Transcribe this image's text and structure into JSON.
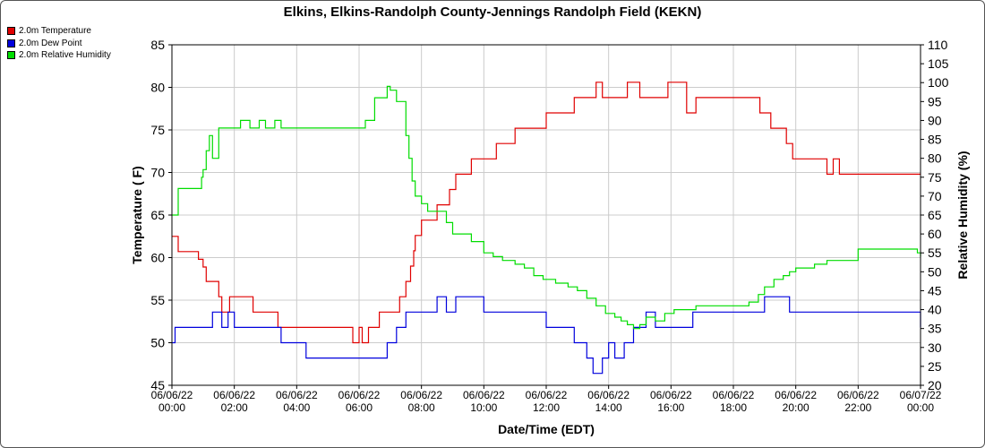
{
  "chart_data": {
    "type": "line",
    "title": "Elkins, Elkins-Randolph County-Jennings Randolph Field (KEKN)",
    "xlabel": "Date/Time (EDT)",
    "ylabel_left": "Temperature ( F)",
    "ylabel_right": "Relative Humidity (%)",
    "ylim_left": [
      45,
      85
    ],
    "ylim_right": [
      20,
      110
    ],
    "yticks_left": [
      "45",
      "50",
      "55",
      "60",
      "65",
      "70",
      "75",
      "80",
      "85"
    ],
    "yticks_right": [
      "20",
      "25",
      "30",
      "35",
      "40",
      "45",
      "50",
      "55",
      "60",
      "65",
      "70",
      "75",
      "80",
      "85",
      "90",
      "95",
      "100",
      "105",
      "110"
    ],
    "xlim_hours": [
      0,
      24
    ],
    "xticks": [
      {
        "date": "06/06/22",
        "time": "00:00"
      },
      {
        "date": "06/06/22",
        "time": "02:00"
      },
      {
        "date": "06/06/22",
        "time": "04:00"
      },
      {
        "date": "06/06/22",
        "time": "06:00"
      },
      {
        "date": "06/06/22",
        "time": "08:00"
      },
      {
        "date": "06/06/22",
        "time": "10:00"
      },
      {
        "date": "06/06/22",
        "time": "12:00"
      },
      {
        "date": "06/06/22",
        "time": "14:00"
      },
      {
        "date": "06/06/22",
        "time": "16:00"
      },
      {
        "date": "06/06/22",
        "time": "18:00"
      },
      {
        "date": "06/06/22",
        "time": "20:00"
      },
      {
        "date": "06/06/22",
        "time": "22:00"
      },
      {
        "date": "06/07/22",
        "time": "00:00"
      }
    ],
    "grid": true,
    "legend_position": "top-left",
    "series": [
      {
        "name": "2.0m Temperature",
        "color": "#e00000",
        "axis": "left",
        "x": [
          0,
          0.15,
          0.2,
          0.8,
          0.85,
          1.0,
          1.1,
          1.3,
          1.5,
          1.6,
          1.75,
          1.85,
          2.5,
          2.6,
          2.9,
          3.2,
          3.4,
          3.7,
          5.75,
          5.8,
          6.0,
          6.1,
          6.3,
          6.5,
          6.65,
          6.8,
          7.0,
          7.3,
          7.5,
          7.65,
          7.75,
          7.8,
          8.0,
          8.2,
          8.5,
          8.9,
          9.1,
          9.4,
          9.6,
          9.9,
          10.0,
          10.4,
          10.6,
          11.0,
          11.5,
          11.8,
          12.0,
          12.5,
          12.9,
          13.0,
          13.3,
          13.6,
          13.8,
          14.3,
          14.6,
          15.0,
          15.5,
          15.9,
          16.1,
          16.5,
          16.8,
          17.3,
          18.2,
          18.7,
          18.85,
          19.2,
          19.5,
          19.7,
          19.9,
          20.2,
          20.6,
          21.0,
          21.2,
          21.4,
          21.6,
          22.0,
          23.0,
          23.9,
          24.0
        ],
        "values": [
          62.5,
          62.5,
          60.7,
          60.7,
          59.8,
          58.9,
          57.2,
          57.2,
          55.4,
          53.6,
          53.6,
          55.4,
          55.4,
          53.6,
          53.6,
          53.6,
          51.8,
          51.8,
          51.8,
          50.0,
          51.8,
          50.0,
          51.8,
          51.8,
          53.6,
          53.6,
          53.6,
          55.4,
          57.2,
          59.0,
          60.8,
          62.6,
          64.4,
          64.4,
          66.2,
          68.0,
          69.8,
          69.8,
          71.6,
          71.6,
          71.6,
          73.4,
          73.4,
          75.2,
          75.2,
          75.2,
          77.0,
          77.0,
          78.8,
          78.8,
          78.8,
          80.6,
          78.8,
          78.8,
          80.6,
          78.8,
          78.8,
          80.6,
          80.6,
          77.0,
          78.8,
          78.8,
          78.8,
          78.8,
          77.0,
          75.2,
          75.2,
          73.4,
          71.6,
          71.6,
          71.6,
          69.8,
          71.6,
          69.8,
          69.8,
          69.8,
          69.8,
          69.8,
          69.8
        ]
      },
      {
        "name": "2.0m Dew Point",
        "color": "#0000dd",
        "axis": "left",
        "x": [
          0,
          0.1,
          0.9,
          1.0,
          1.2,
          1.3,
          1.6,
          1.8,
          2.0,
          2.6,
          2.8,
          2.9,
          3.3,
          3.5,
          3.9,
          4.3,
          4.5,
          5.5,
          5.9,
          6.9,
          7.2,
          7.5,
          7.9,
          8.2,
          8.5,
          8.8,
          9.1,
          9.8,
          10.0,
          10.3,
          10.7,
          11.0,
          11.5,
          12.0,
          12.5,
          12.9,
          13.3,
          13.5,
          13.8,
          14.0,
          14.2,
          14.5,
          14.8,
          15.0,
          15.2,
          15.5,
          15.8,
          16.0,
          16.4,
          16.7,
          17.0,
          18.0,
          18.7,
          19.0,
          19.5,
          19.8,
          20.3,
          21.0,
          22.0,
          23.0,
          23.9,
          24.0
        ],
        "values": [
          50.0,
          51.8,
          51.8,
          51.8,
          51.8,
          53.6,
          51.8,
          53.6,
          51.8,
          51.8,
          51.8,
          51.8,
          51.8,
          50.0,
          50.0,
          48.2,
          48.2,
          48.2,
          48.2,
          50.0,
          51.8,
          53.6,
          53.6,
          53.6,
          55.4,
          53.6,
          55.4,
          55.4,
          53.6,
          53.6,
          53.6,
          53.6,
          53.6,
          51.8,
          51.8,
          50.0,
          48.2,
          46.4,
          48.2,
          50.0,
          48.2,
          50.0,
          51.8,
          51.8,
          53.6,
          51.8,
          51.8,
          51.8,
          51.8,
          53.6,
          53.6,
          53.6,
          53.6,
          55.4,
          55.4,
          53.6,
          53.6,
          53.6,
          53.6,
          53.6,
          53.6,
          51.8
        ]
      },
      {
        "name": "2.0m Relative Humidity",
        "color": "#00dd00",
        "axis": "right",
        "x": [
          0,
          0.2,
          0.5,
          0.8,
          0.95,
          1.0,
          1.1,
          1.2,
          1.3,
          1.5,
          2.0,
          2.2,
          2.5,
          2.8,
          3.0,
          3.3,
          3.5,
          4.0,
          5.8,
          6.2,
          6.5,
          6.9,
          7.0,
          7.2,
          7.5,
          7.6,
          7.7,
          7.8,
          8.0,
          8.2,
          8.5,
          8.8,
          9.0,
          9.3,
          9.6,
          9.9,
          10.0,
          10.3,
          10.6,
          11.0,
          11.3,
          11.6,
          11.9,
          12.3,
          12.7,
          13.0,
          13.3,
          13.6,
          13.9,
          14.2,
          14.4,
          14.6,
          14.8,
          15.0,
          15.2,
          15.5,
          15.8,
          16.1,
          16.5,
          16.8,
          17.2,
          17.7,
          18.2,
          18.5,
          18.8,
          19.0,
          19.3,
          19.6,
          19.8,
          20.0,
          20.3,
          20.6,
          21.0,
          21.5,
          22.0,
          23.0,
          23.8,
          23.9,
          24.0
        ],
        "values": [
          65,
          72,
          72,
          72,
          75,
          77,
          82,
          86,
          80,
          88,
          88,
          90,
          88,
          90,
          88,
          90,
          88,
          88,
          88,
          90,
          96,
          99,
          98,
          95,
          86,
          80,
          74,
          70,
          68,
          66,
          66,
          63,
          60,
          60,
          58,
          58,
          55,
          54,
          53,
          52,
          51,
          49,
          48,
          47,
          46,
          45,
          43,
          41,
          39,
          38,
          37,
          36,
          35,
          36,
          38,
          37,
          39,
          40,
          40,
          41,
          41,
          41,
          41,
          42,
          44,
          46,
          48,
          49,
          50,
          51,
          51,
          52,
          53,
          53,
          56,
          56,
          56,
          55,
          54
        ]
      }
    ]
  }
}
